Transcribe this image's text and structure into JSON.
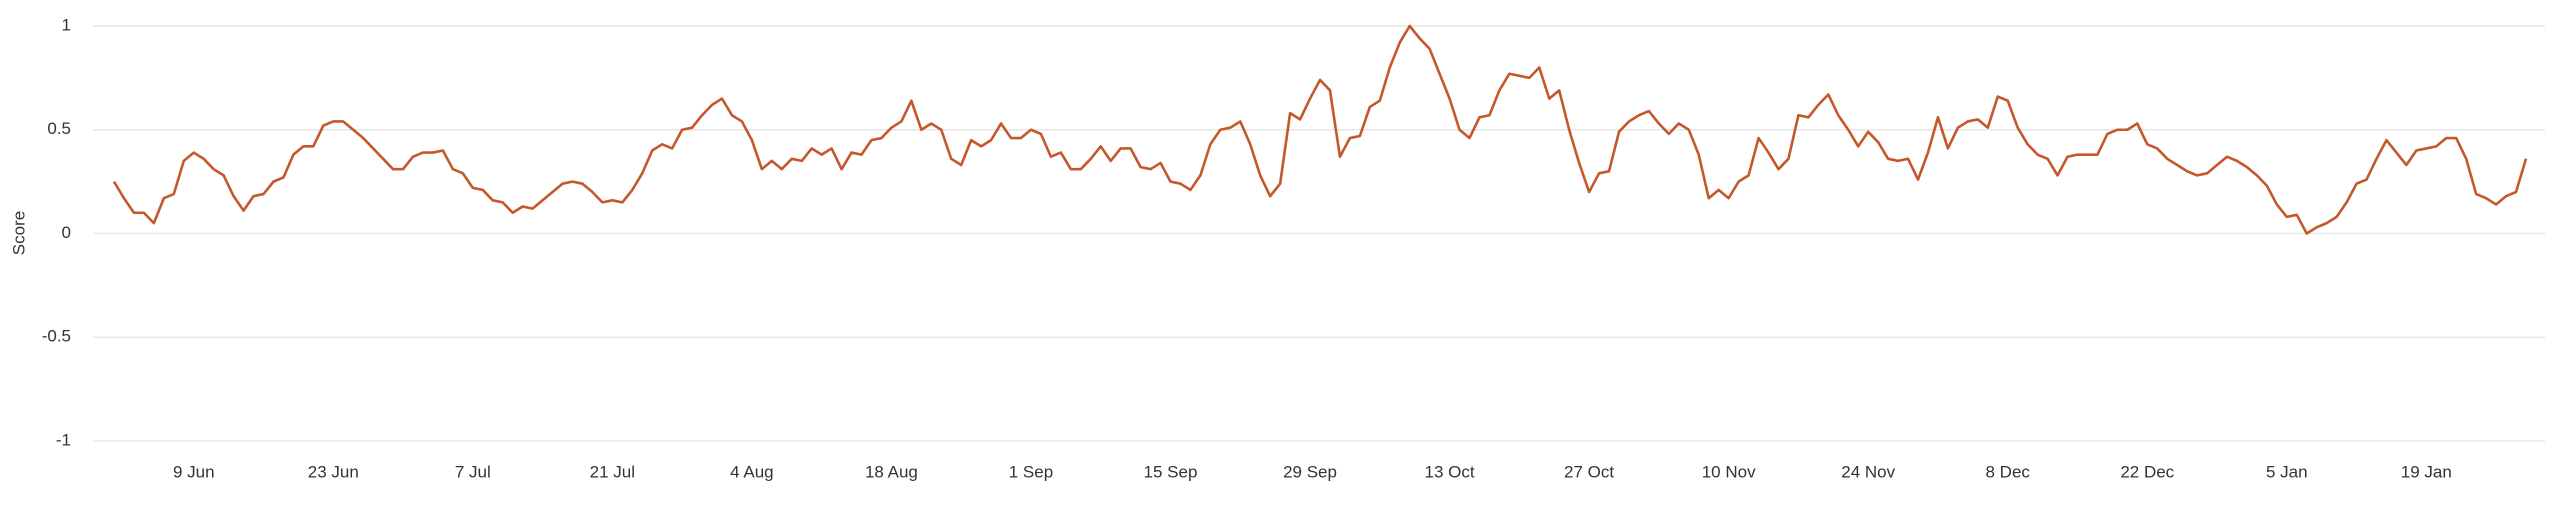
{
  "chart_data": {
    "type": "line",
    "y_label": "Score",
    "color": "#c4582a",
    "grid": true,
    "ylim": [
      -1,
      1
    ],
    "yticks": [
      -1,
      -0.5,
      0,
      0.5,
      1
    ],
    "x": [
      "1 Jun",
      "2 Jun",
      "3 Jun",
      "4 Jun",
      "5 Jun",
      "6 Jun",
      "7 Jun",
      "8 Jun",
      "9 Jun",
      "10 Jun",
      "11 Jun",
      "12 Jun",
      "13 Jun",
      "14 Jun",
      "15 Jun",
      "16 Jun",
      "17 Jun",
      "18 Jun",
      "19 Jun",
      "20 Jun",
      "21 Jun",
      "22 Jun",
      "23 Jun",
      "24 Jun",
      "25 Jun",
      "26 Jun",
      "27 Jun",
      "28 Jun",
      "29 Jun",
      "30 Jun",
      "1 Jul",
      "2 Jul",
      "3 Jul",
      "4 Jul",
      "5 Jul",
      "6 Jul",
      "7 Jul",
      "8 Jul",
      "9 Jul",
      "10 Jul",
      "11 Jul",
      "12 Jul",
      "13 Jul",
      "14 Jul",
      "15 Jul",
      "16 Jul",
      "17 Jul",
      "18 Jul",
      "19 Jul",
      "20 Jul",
      "21 Jul",
      "22 Jul",
      "23 Jul",
      "24 Jul",
      "25 Jul",
      "26 Jul",
      "27 Jul",
      "28 Jul",
      "29 Jul",
      "30 Jul",
      "31 Jul",
      "1 Aug",
      "2 Aug",
      "3 Aug",
      "4 Aug",
      "5 Aug",
      "6 Aug",
      "7 Aug",
      "8 Aug",
      "9 Aug",
      "10 Aug",
      "11 Aug",
      "12 Aug",
      "13 Aug",
      "14 Aug",
      "15 Aug",
      "16 Aug",
      "17 Aug",
      "18 Aug",
      "19 Aug",
      "20 Aug",
      "21 Aug",
      "22 Aug",
      "23 Aug",
      "24 Aug",
      "25 Aug",
      "26 Aug",
      "27 Aug",
      "28 Aug",
      "29 Aug",
      "30 Aug",
      "31 Aug",
      "1 Sep",
      "2 Sep",
      "3 Sep",
      "4 Sep",
      "5 Sep",
      "6 Sep",
      "7 Sep",
      "8 Sep",
      "9 Sep",
      "10 Sep",
      "11 Sep",
      "12 Sep",
      "13 Sep",
      "14 Sep",
      "15 Sep",
      "16 Sep",
      "17 Sep",
      "18 Sep",
      "19 Sep",
      "20 Sep",
      "21 Sep",
      "22 Sep",
      "23 Sep",
      "24 Sep",
      "25 Sep",
      "26 Sep",
      "27 Sep",
      "28 Sep",
      "29 Sep",
      "30 Sep",
      "1 Oct",
      "2 Oct",
      "3 Oct",
      "4 Oct",
      "5 Oct",
      "6 Oct",
      "7 Oct",
      "8 Oct",
      "9 Oct",
      "10 Oct",
      "11 Oct",
      "12 Oct",
      "13 Oct",
      "14 Oct",
      "15 Oct",
      "16 Oct",
      "17 Oct",
      "18 Oct",
      "19 Oct",
      "20 Oct",
      "21 Oct",
      "22 Oct",
      "23 Oct",
      "24 Oct",
      "25 Oct",
      "26 Oct",
      "27 Oct",
      "28 Oct",
      "29 Oct",
      "30 Oct",
      "31 Oct",
      "1 Nov",
      "2 Nov",
      "3 Nov",
      "4 Nov",
      "5 Nov",
      "6 Nov",
      "7 Nov",
      "8 Nov",
      "9 Nov",
      "10 Nov",
      "11 Nov",
      "12 Nov",
      "13 Nov",
      "14 Nov",
      "15 Nov",
      "16 Nov",
      "17 Nov",
      "18 Nov",
      "19 Nov",
      "20 Nov",
      "21 Nov",
      "22 Nov",
      "23 Nov",
      "24 Nov",
      "25 Nov",
      "26 Nov",
      "27 Nov",
      "28 Nov",
      "29 Nov",
      "30 Nov",
      "1 Dec",
      "2 Dec",
      "3 Dec",
      "4 Dec",
      "5 Dec",
      "6 Dec",
      "7 Dec",
      "8 Dec",
      "9 Dec",
      "10 Dec",
      "11 Dec",
      "12 Dec",
      "13 Dec",
      "14 Dec",
      "15 Dec",
      "16 Dec",
      "17 Dec",
      "18 Dec",
      "19 Dec",
      "20 Dec",
      "21 Dec",
      "22 Dec",
      "23 Dec",
      "24 Dec",
      "25 Dec",
      "26 Dec",
      "27 Dec",
      "28 Dec",
      "29 Dec",
      "30 Dec",
      "31 Dec",
      "1 Jan",
      "2 Jan",
      "3 Jan",
      "4 Jan",
      "5 Jan",
      "6 Jan",
      "7 Jan",
      "8 Jan",
      "9 Jan",
      "10 Jan",
      "11 Jan",
      "12 Jan",
      "13 Jan",
      "14 Jan",
      "15 Jan",
      "16 Jan",
      "17 Jan",
      "18 Jan",
      "19 Jan",
      "20 Jan",
      "21 Jan",
      "22 Jan",
      "23 Jan",
      "24 Jan",
      "25 Jan",
      "26 Jan",
      "27 Jan",
      "28 Jan",
      "29 Jan"
    ],
    "values": [
      0.25,
      0.17,
      0.1,
      0.1,
      0.05,
      0.17,
      0.19,
      0.35,
      0.39,
      0.36,
      0.31,
      0.28,
      0.18,
      0.11,
      0.18,
      0.19,
      0.25,
      0.27,
      0.38,
      0.42,
      0.42,
      0.52,
      0.54,
      0.54,
      0.5,
      0.46,
      0.41,
      0.36,
      0.31,
      0.31,
      0.37,
      0.39,
      0.39,
      0.4,
      0.31,
      0.29,
      0.22,
      0.21,
      0.16,
      0.15,
      0.1,
      0.13,
      0.12,
      0.16,
      0.2,
      0.24,
      0.25,
      0.24,
      0.2,
      0.15,
      0.16,
      0.15,
      0.21,
      0.29,
      0.4,
      0.43,
      0.41,
      0.5,
      0.51,
      0.57,
      0.62,
      0.65,
      0.57,
      0.54,
      0.45,
      0.31,
      0.35,
      0.31,
      0.36,
      0.35,
      0.41,
      0.38,
      0.41,
      0.31,
      0.39,
      0.38,
      0.45,
      0.46,
      0.51,
      0.54,
      0.64,
      0.5,
      0.53,
      0.5,
      0.36,
      0.33,
      0.45,
      0.42,
      0.45,
      0.53,
      0.46,
      0.46,
      0.5,
      0.48,
      0.37,
      0.39,
      0.31,
      0.31,
      0.36,
      0.42,
      0.35,
      0.41,
      0.41,
      0.32,
      0.31,
      0.34,
      0.25,
      0.24,
      0.21,
      0.28,
      0.43,
      0.5,
      0.51,
      0.54,
      0.43,
      0.28,
      0.18,
      0.24,
      0.58,
      0.55,
      0.65,
      0.74,
      0.69,
      0.37,
      0.46,
      0.47,
      0.61,
      0.64,
      0.8,
      0.92,
      1.0,
      0.94,
      0.89,
      0.77,
      0.65,
      0.5,
      0.46,
      0.56,
      0.57,
      0.69,
      0.77,
      0.76,
      0.75,
      0.8,
      0.65,
      0.69,
      0.5,
      0.34,
      0.2,
      0.29,
      0.3,
      0.49,
      0.54,
      0.57,
      0.59,
      0.53,
      0.48,
      0.53,
      0.5,
      0.38,
      0.17,
      0.21,
      0.17,
      0.25,
      0.28,
      0.46,
      0.39,
      0.31,
      0.36,
      0.57,
      0.56,
      0.62,
      0.67,
      0.57,
      0.5,
      0.42,
      0.49,
      0.44,
      0.36,
      0.35,
      0.36,
      0.26,
      0.39,
      0.56,
      0.41,
      0.51,
      0.54,
      0.55,
      0.51,
      0.66,
      0.64,
      0.51,
      0.43,
      0.38,
      0.36,
      0.28,
      0.37,
      0.38,
      0.38,
      0.38,
      0.48,
      0.5,
      0.5,
      0.53,
      0.43,
      0.41,
      0.36,
      0.33,
      0.3,
      0.28,
      0.29,
      0.33,
      0.37,
      0.35,
      0.32,
      0.28,
      0.23,
      0.14,
      0.08,
      0.09,
      0.0,
      0.03,
      0.05,
      0.08,
      0.15,
      0.24,
      0.26,
      0.36,
      0.45,
      0.39,
      0.33,
      0.4,
      0.41,
      0.42,
      0.46,
      0.46,
      0.36,
      0.19,
      0.17,
      0.14,
      0.18,
      0.2,
      0.36
    ],
    "xticks": [
      "9 Jun",
      "23 Jun",
      "7 Jul",
      "21 Jul",
      "4 Aug",
      "18 Aug",
      "1 Sep",
      "15 Sep",
      "29 Sep",
      "13 Oct",
      "27 Oct",
      "10 Nov",
      "24 Nov",
      "8 Dec",
      "22 Dec",
      "5 Jan",
      "19 Jan"
    ]
  }
}
